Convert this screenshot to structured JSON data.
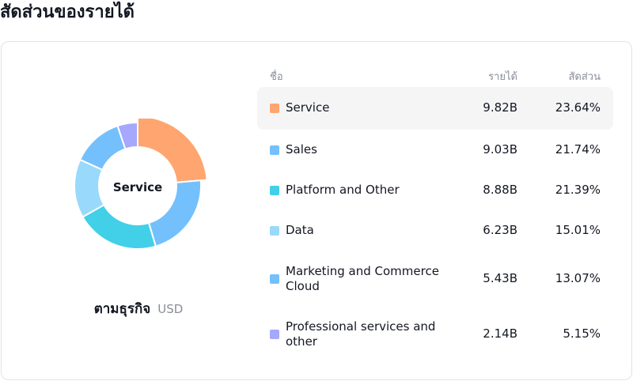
{
  "page": {
    "title": "สัดส่วนของรายได้"
  },
  "breakdown": {
    "label": "ตามธุรกิจ",
    "currency": "USD"
  },
  "donut": {
    "center_label": "Service"
  },
  "table": {
    "headers": {
      "name": "ชื่อ",
      "revenue": "รายได้",
      "share": "สัดส่วน"
    },
    "rows": [
      {
        "name": "Service",
        "revenue": "9.82B",
        "share": "23.64%",
        "color": "#ffa56f",
        "active": true
      },
      {
        "name": "Sales",
        "revenue": "9.03B",
        "share": "21.74%",
        "color": "#74c0fc",
        "active": false
      },
      {
        "name": "Platform and Other",
        "revenue": "8.88B",
        "share": "21.39%",
        "color": "#42d0e8",
        "active": false
      },
      {
        "name": "Data",
        "revenue": "6.23B",
        "share": "15.01%",
        "color": "#99d9fb",
        "active": false
      },
      {
        "name": "Marketing and Commerce Cloud",
        "revenue": "5.43B",
        "share": "13.07%",
        "color": "#74c0fc",
        "active": false
      },
      {
        "name": "Professional services and other",
        "revenue": "2.14B",
        "share": "5.15%",
        "color": "#a5a8fd",
        "active": false
      }
    ]
  },
  "chart_data": {
    "type": "pie",
    "donut": true,
    "categories": [
      "Service",
      "Sales",
      "Platform and Other",
      "Data",
      "Marketing and Commerce Cloud",
      "Professional services and other"
    ],
    "values": [
      23.64,
      21.74,
      21.39,
      15.01,
      13.07,
      5.15
    ],
    "unit": "%",
    "highlighted": "Service",
    "colors": [
      "#ffa56f",
      "#74c0fc",
      "#42d0e8",
      "#99d9fb",
      "#74c0fc",
      "#a5a8fd"
    ]
  }
}
